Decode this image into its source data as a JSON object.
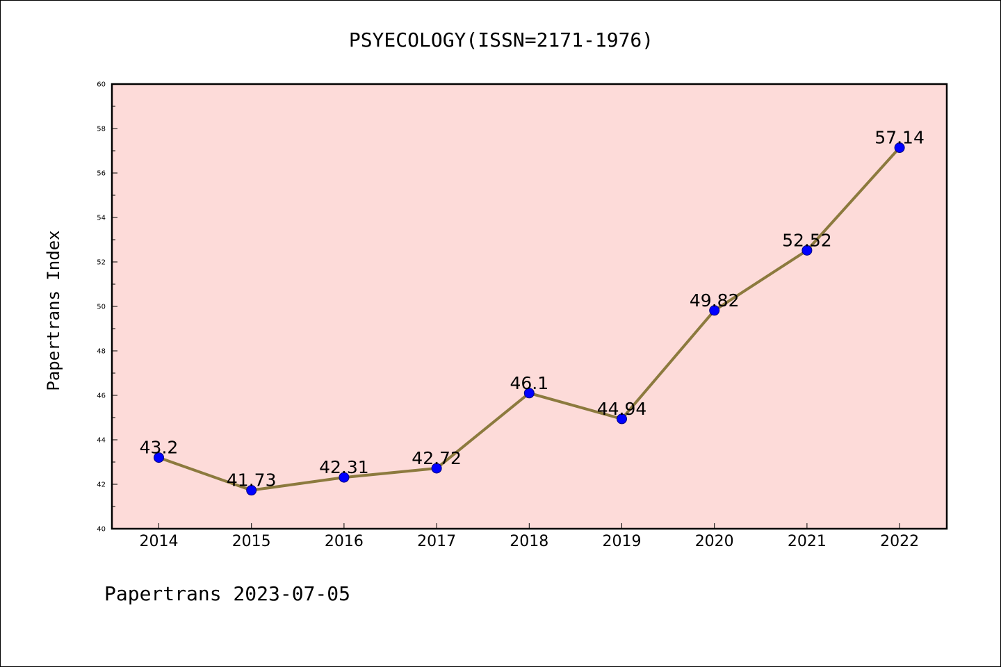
{
  "chart_data": {
    "type": "line",
    "title": "PSYECOLOGY(ISSN=2171-1976)",
    "ylabel": "Papertrans Index",
    "footer": "Papertrans 2023-07-05",
    "categories": [
      "2014",
      "2015",
      "2016",
      "2017",
      "2018",
      "2019",
      "2020",
      "2021",
      "2022"
    ],
    "series": [
      {
        "values": [
          43.2,
          41.73,
          42.31,
          42.72,
          46.1,
          44.94,
          49.82,
          52.52,
          57.14
        ],
        "labels": [
          "43.2",
          "41.73",
          "42.31",
          "42.72",
          "46.1",
          "44.94",
          "49.82",
          "52.52",
          "57.14"
        ]
      }
    ],
    "ylim": [
      40,
      60
    ],
    "yticks": [
      "40",
      "42",
      "44",
      "46",
      "48",
      "50",
      "52",
      "54",
      "56",
      "58",
      "60"
    ],
    "grid": false,
    "colors": {
      "plot_background": "#fddbd9",
      "line": "#8c7a3e",
      "marker": "#0000ff",
      "marker_edge": "#000080"
    }
  }
}
